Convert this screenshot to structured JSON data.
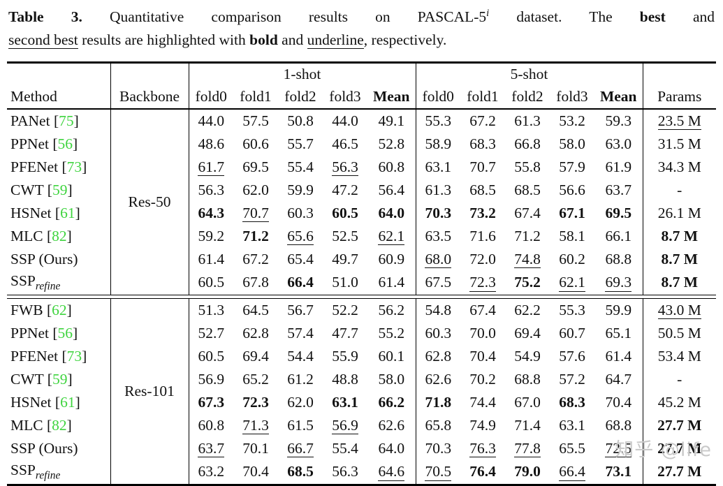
{
  "caption": {
    "line1": [
      {
        "t": "Table 3.",
        "s": "b"
      },
      {
        "t": " Quantitative comparison results on PASCAL-5",
        "s": ""
      },
      {
        "t": "i",
        "s": "sup"
      },
      {
        "t": " dataset. The ",
        "s": ""
      },
      {
        "t": "best",
        "s": "b"
      },
      {
        "t": " and",
        "s": ""
      }
    ],
    "line2": [
      {
        "t": "second best",
        "s": "u"
      },
      {
        "t": " results are highlighted with ",
        "s": ""
      },
      {
        "t": "bold",
        "s": "b"
      },
      {
        "t": " and ",
        "s": ""
      },
      {
        "t": "underline",
        "s": "u"
      },
      {
        "t": ", respectively.",
        "s": ""
      }
    ]
  },
  "table": {
    "headers": {
      "method": "Method",
      "backbone": "Backbone",
      "group1": "1-shot",
      "group5": "5-shot",
      "folds": [
        "fold0",
        "fold1",
        "fold2",
        "fold3",
        "Mean"
      ],
      "params": "Params"
    },
    "blocks": [
      {
        "backbone": "Res-50",
        "rows": [
          {
            "method": "PANet",
            "cite": "75",
            "sub": "",
            "one": [
              "44.0",
              "57.5",
              "50.8",
              "44.0",
              "49.1"
            ],
            "one_s": [
              "",
              "",
              "",
              "",
              ""
            ],
            "five": [
              "55.3",
              "67.2",
              "61.3",
              "53.2",
              "59.3"
            ],
            "five_s": [
              "",
              "",
              "",
              "",
              ""
            ],
            "params": "23.5 M",
            "params_s": "u"
          },
          {
            "method": "PPNet",
            "cite": "56",
            "sub": "",
            "one": [
              "48.6",
              "60.6",
              "55.7",
              "46.5",
              "52.8"
            ],
            "one_s": [
              "",
              "",
              "",
              "",
              ""
            ],
            "five": [
              "58.9",
              "68.3",
              "66.8",
              "58.0",
              "63.0"
            ],
            "five_s": [
              "",
              "",
              "",
              "",
              ""
            ],
            "params": "31.5 M",
            "params_s": ""
          },
          {
            "method": "PFENet",
            "cite": "73",
            "sub": "",
            "one": [
              "61.7",
              "69.5",
              "55.4",
              "56.3",
              "60.8"
            ],
            "one_s": [
              "u",
              "",
              "",
              "u",
              ""
            ],
            "five": [
              "63.1",
              "70.7",
              "55.8",
              "57.9",
              "61.9"
            ],
            "five_s": [
              "",
              "",
              "",
              "",
              ""
            ],
            "params": "34.3 M",
            "params_s": ""
          },
          {
            "method": "CWT",
            "cite": "59",
            "sub": "",
            "one": [
              "56.3",
              "62.0",
              "59.9",
              "47.2",
              "56.4"
            ],
            "one_s": [
              "",
              "",
              "",
              "",
              ""
            ],
            "five": [
              "61.3",
              "68.5",
              "68.5",
              "56.6",
              "63.7"
            ],
            "five_s": [
              "",
              "",
              "",
              "",
              ""
            ],
            "params": "-",
            "params_s": ""
          },
          {
            "method": "HSNet",
            "cite": "61",
            "sub": "",
            "one": [
              "64.3",
              "70.7",
              "60.3",
              "60.5",
              "64.0"
            ],
            "one_s": [
              "b",
              "u",
              "",
              "b",
              "b"
            ],
            "five": [
              "70.3",
              "73.2",
              "67.4",
              "67.1",
              "69.5"
            ],
            "five_s": [
              "b",
              "b",
              "",
              "b",
              "b"
            ],
            "params": "26.1 M",
            "params_s": ""
          },
          {
            "method": "MLC",
            "cite": "82",
            "sub": "",
            "one": [
              "59.2",
              "71.2",
              "65.6",
              "52.5",
              "62.1"
            ],
            "one_s": [
              "",
              "b",
              "u",
              "",
              "u"
            ],
            "five": [
              "63.5",
              "71.6",
              "71.2",
              "58.1",
              "66.1"
            ],
            "five_s": [
              "",
              "",
              "",
              "",
              ""
            ],
            "params": "8.7 M",
            "params_s": "b"
          },
          {
            "method": "SSP (Ours)",
            "cite": "",
            "sub": "",
            "one": [
              "61.4",
              "67.2",
              "65.4",
              "49.7",
              "60.9"
            ],
            "one_s": [
              "",
              "",
              "",
              "",
              ""
            ],
            "five": [
              "68.0",
              "72.0",
              "74.8",
              "60.2",
              "68.8"
            ],
            "five_s": [
              "u",
              "",
              "u",
              "",
              ""
            ],
            "params": "8.7 M",
            "params_s": "b"
          },
          {
            "method": "SSP",
            "cite": "",
            "sub": "refine",
            "one": [
              "60.5",
              "67.8",
              "66.4",
              "51.0",
              "61.4"
            ],
            "one_s": [
              "",
              "",
              "b",
              "",
              ""
            ],
            "five": [
              "67.5",
              "72.3",
              "75.2",
              "62.1",
              "69.3"
            ],
            "five_s": [
              "",
              "u",
              "b",
              "u",
              "u"
            ],
            "params": "8.7 M",
            "params_s": "b"
          }
        ]
      },
      {
        "backbone": "Res-101",
        "rows": [
          {
            "method": "FWB",
            "cite": "62",
            "sub": "",
            "one": [
              "51.3",
              "64.5",
              "56.7",
              "52.2",
              "56.2"
            ],
            "one_s": [
              "",
              "",
              "",
              "",
              ""
            ],
            "five": [
              "54.8",
              "67.4",
              "62.2",
              "55.3",
              "59.9"
            ],
            "five_s": [
              "",
              "",
              "",
              "",
              ""
            ],
            "params": "43.0 M",
            "params_s": "u"
          },
          {
            "method": "PPNet",
            "cite": "56",
            "sub": "",
            "one": [
              "52.7",
              "62.8",
              "57.4",
              "47.7",
              "55.2"
            ],
            "one_s": [
              "",
              "",
              "",
              "",
              ""
            ],
            "five": [
              "60.3",
              "70.0",
              "69.4",
              "60.7",
              "65.1"
            ],
            "five_s": [
              "",
              "",
              "",
              "",
              ""
            ],
            "params": "50.5 M",
            "params_s": ""
          },
          {
            "method": "PFENet",
            "cite": "73",
            "sub": "",
            "one": [
              "60.5",
              "69.4",
              "54.4",
              "55.9",
              "60.1"
            ],
            "one_s": [
              "",
              "",
              "",
              "",
              ""
            ],
            "five": [
              "62.8",
              "70.4",
              "54.9",
              "57.6",
              "61.4"
            ],
            "five_s": [
              "",
              "",
              "",
              "",
              ""
            ],
            "params": "53.4 M",
            "params_s": ""
          },
          {
            "method": "CWT",
            "cite": "59",
            "sub": "",
            "one": [
              "56.9",
              "65.2",
              "61.2",
              "48.8",
              "58.0"
            ],
            "one_s": [
              "",
              "",
              "",
              "",
              ""
            ],
            "five": [
              "62.6",
              "70.2",
              "68.8",
              "57.2",
              "64.7"
            ],
            "five_s": [
              "",
              "",
              "",
              "",
              ""
            ],
            "params": "-",
            "params_s": ""
          },
          {
            "method": "HSNet",
            "cite": "61",
            "sub": "",
            "one": [
              "67.3",
              "72.3",
              "62.0",
              "63.1",
              "66.2"
            ],
            "one_s": [
              "b",
              "b",
              "",
              "b",
              "b"
            ],
            "five": [
              "71.8",
              "74.4",
              "67.0",
              "68.3",
              "70.4"
            ],
            "five_s": [
              "b",
              "",
              "",
              "b",
              ""
            ],
            "params": "45.2 M",
            "params_s": ""
          },
          {
            "method": "MLC",
            "cite": "82",
            "sub": "",
            "one": [
              "60.8",
              "71.3",
              "61.5",
              "56.9",
              "62.6"
            ],
            "one_s": [
              "",
              "u",
              "",
              "u",
              ""
            ],
            "five": [
              "65.8",
              "74.9",
              "71.4",
              "63.1",
              "68.8"
            ],
            "five_s": [
              "",
              "",
              "",
              "",
              ""
            ],
            "params": "27.7 M",
            "params_s": "b"
          },
          {
            "method": "SSP (Ours)",
            "cite": "",
            "sub": "",
            "one": [
              "63.7",
              "70.1",
              "66.7",
              "55.4",
              "64.0"
            ],
            "one_s": [
              "u",
              "",
              "u",
              "",
              ""
            ],
            "five": [
              "70.3",
              "76.3",
              "77.8",
              "65.5",
              "72.5"
            ],
            "five_s": [
              "",
              "u",
              "u",
              "",
              "u"
            ],
            "params": "27.7 M",
            "params_s": "b"
          },
          {
            "method": "SSP",
            "cite": "",
            "sub": "refine",
            "one": [
              "63.2",
              "70.4",
              "68.5",
              "56.3",
              "64.6"
            ],
            "one_s": [
              "",
              "",
              "b",
              "",
              "u"
            ],
            "five": [
              "70.5",
              "76.4",
              "79.0",
              "66.4",
              "73.1"
            ],
            "five_s": [
              "u",
              "b",
              "b",
              "u",
              "b"
            ],
            "params": "27.7 M",
            "params_s": "b"
          }
        ]
      }
    ]
  },
  "watermark": "知乎 @life",
  "colors": {
    "cite_green": "#3fd43f",
    "text": "#111111",
    "watermark_gray": "#c9c9c9"
  }
}
